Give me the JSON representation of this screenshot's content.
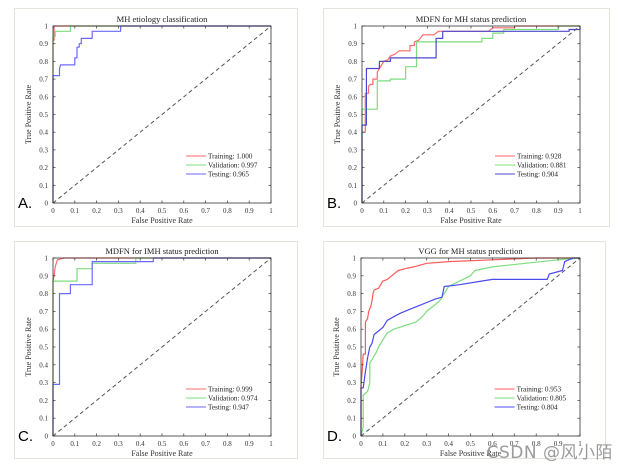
{
  "watermark": "CSDN @风小陌",
  "chart_data": [
    {
      "type": "line",
      "panel_label": "A.",
      "title": "MH etiology classification",
      "xlabel": "False Positive Rate",
      "ylabel": "True Positive Rate",
      "xlim": [
        0,
        1
      ],
      "ylim": [
        0,
        1
      ],
      "xticks": [
        "0",
        "0.1",
        "0.2",
        "0.3",
        "0.4",
        "0.5",
        "0.6",
        "0.7",
        "0.8",
        "0.9",
        "1"
      ],
      "yticks": [
        "0",
        "0.1",
        "0.2",
        "0.3",
        "0.4",
        "0.5",
        "0.6",
        "0.7",
        "0.8",
        "0.9",
        "1"
      ],
      "legend_position": "bottom-right",
      "series": [
        {
          "name": "Training: 1.000",
          "color": "#ff6a6a",
          "points": [
            [
              0,
              0
            ],
            [
              0,
              0.92
            ],
            [
              0.005,
              0.92
            ],
            [
              0.005,
              1
            ],
            [
              0.08,
              1
            ],
            [
              1,
              1
            ]
          ]
        },
        {
          "name": "Validation: 0.997",
          "color": "#7ddc7d",
          "points": [
            [
              0,
              0
            ],
            [
              0,
              0.94
            ],
            [
              0.01,
              0.94
            ],
            [
              0.01,
              0.97
            ],
            [
              0.08,
              0.97
            ],
            [
              0.08,
              1
            ],
            [
              1,
              1
            ]
          ]
        },
        {
          "name": "Testing: 0.965",
          "color": "#6a6aff",
          "points": [
            [
              0,
              0
            ],
            [
              0,
              0.72
            ],
            [
              0.03,
              0.72
            ],
            [
              0.03,
              0.76
            ],
            [
              0.035,
              0.78
            ],
            [
              0.1,
              0.78
            ],
            [
              0.1,
              0.82
            ],
            [
              0.11,
              0.82
            ],
            [
              0.11,
              0.88
            ],
            [
              0.12,
              0.88
            ],
            [
              0.12,
              0.9
            ],
            [
              0.13,
              0.9
            ],
            [
              0.13,
              0.93
            ],
            [
              0.18,
              0.93
            ],
            [
              0.18,
              0.97
            ],
            [
              0.31,
              0.97
            ],
            [
              0.31,
              1
            ],
            [
              1,
              1
            ]
          ]
        },
        {
          "name": "Chance",
          "color": "#555555",
          "dashed": true,
          "legend": false,
          "points": [
            [
              0,
              0
            ],
            [
              1,
              1
            ]
          ]
        }
      ]
    },
    {
      "type": "line",
      "panel_label": "B.",
      "title": "MDFN for MH status prediction",
      "xlabel": "False Positive Rate",
      "ylabel": "True Positive Rate",
      "xlim": [
        0,
        1
      ],
      "ylim": [
        0,
        1
      ],
      "xticks": [
        "0",
        "0.1",
        "0.2",
        "0.3",
        "0.4",
        "0.5",
        "0.6",
        "0.7",
        "0.8",
        "0.9",
        "1"
      ],
      "yticks": [
        "0",
        "0.1",
        "0.2",
        "0.3",
        "0.4",
        "0.5",
        "0.6",
        "0.7",
        "0.8",
        "0.9",
        "1"
      ],
      "legend_position": "bottom-right",
      "series": [
        {
          "name": "Training: 0.928",
          "color": "#ff6a6a",
          "points": [
            [
              0,
              0
            ],
            [
              0,
              0.4
            ],
            [
              0.015,
              0.4
            ],
            [
              0.015,
              0.62
            ],
            [
              0.03,
              0.62
            ],
            [
              0.03,
              0.66
            ],
            [
              0.04,
              0.67
            ],
            [
              0.05,
              0.67
            ],
            [
              0.05,
              0.7
            ],
            [
              0.07,
              0.7
            ],
            [
              0.07,
              0.74
            ],
            [
              0.08,
              0.76
            ],
            [
              0.09,
              0.78
            ],
            [
              0.1,
              0.8
            ],
            [
              0.12,
              0.81
            ],
            [
              0.13,
              0.83
            ],
            [
              0.15,
              0.84
            ],
            [
              0.17,
              0.86
            ],
            [
              0.22,
              0.86
            ],
            [
              0.22,
              0.89
            ],
            [
              0.24,
              0.89
            ],
            [
              0.24,
              0.91
            ],
            [
              0.26,
              0.92
            ],
            [
              0.28,
              0.95
            ],
            [
              0.33,
              0.95
            ],
            [
              0.35,
              0.97
            ],
            [
              0.58,
              0.97
            ],
            [
              0.6,
              0.99
            ],
            [
              0.7,
              0.99
            ],
            [
              0.7,
              1
            ],
            [
              1,
              1
            ]
          ]
        },
        {
          "name": "Validation: 0.881",
          "color": "#7ddc7d",
          "points": [
            [
              0,
              0
            ],
            [
              0,
              0.53
            ],
            [
              0.07,
              0.53
            ],
            [
              0.07,
              0.69
            ],
            [
              0.13,
              0.69
            ],
            [
              0.13,
              0.7
            ],
            [
              0.2,
              0.7
            ],
            [
              0.2,
              0.77
            ],
            [
              0.25,
              0.77
            ],
            [
              0.25,
              0.91
            ],
            [
              0.55,
              0.91
            ],
            [
              0.55,
              0.93
            ],
            [
              0.6,
              0.93
            ],
            [
              0.6,
              0.96
            ],
            [
              0.65,
              0.96
            ],
            [
              0.65,
              0.98
            ],
            [
              0.9,
              0.98
            ],
            [
              0.9,
              1
            ],
            [
              1,
              1
            ]
          ]
        },
        {
          "name": "Testing: 0.904",
          "color": "#4a4acc",
          "points": [
            [
              0,
              0
            ],
            [
              0,
              0.44
            ],
            [
              0.02,
              0.44
            ],
            [
              0.02,
              0.76
            ],
            [
              0.08,
              0.76
            ],
            [
              0.08,
              0.8
            ],
            [
              0.13,
              0.8
            ],
            [
              0.13,
              0.82
            ],
            [
              0.34,
              0.82
            ],
            [
              0.34,
              0.93
            ],
            [
              0.37,
              0.93
            ],
            [
              0.37,
              0.97
            ],
            [
              0.95,
              0.97
            ],
            [
              0.95,
              0.98
            ],
            [
              1,
              0.98
            ],
            [
              1,
              1
            ]
          ]
        },
        {
          "name": "Chance",
          "color": "#555555",
          "dashed": true,
          "legend": false,
          "points": [
            [
              0,
              0
            ],
            [
              1,
              1
            ]
          ]
        }
      ]
    },
    {
      "type": "line",
      "panel_label": "C.",
      "title": "MDFN for IMH status prediction",
      "xlabel": "False Positive Rate",
      "ylabel": "True Positive Rate",
      "xlim": [
        0,
        1
      ],
      "ylim": [
        0,
        1
      ],
      "xticks": [
        "0",
        "0.1",
        "0.2",
        "0.3",
        "0.4",
        "0.5",
        "0.6",
        "0.7",
        "0.8",
        "0.9",
        "1"
      ],
      "yticks": [
        "0",
        "0.1",
        "0.2",
        "0.3",
        "0.4",
        "0.5",
        "0.6",
        "0.7",
        "0.8",
        "0.9",
        "1"
      ],
      "legend_position": "bottom-right",
      "series": [
        {
          "name": "Training: 0.999",
          "color": "#ff6a6a",
          "points": [
            [
              0,
              0
            ],
            [
              0,
              0.87
            ],
            [
              0.005,
              0.9
            ],
            [
              0.01,
              0.95
            ],
            [
              0.015,
              0.97
            ],
            [
              0.02,
              0.99
            ],
            [
              0.05,
              1
            ],
            [
              1,
              1
            ]
          ]
        },
        {
          "name": "Validation: 0.974",
          "color": "#7ddc7d",
          "points": [
            [
              0,
              0
            ],
            [
              0,
              0.87
            ],
            [
              0.11,
              0.87
            ],
            [
              0.11,
              0.94
            ],
            [
              0.18,
              0.94
            ],
            [
              0.18,
              0.97
            ],
            [
              0.38,
              0.97
            ],
            [
              0.38,
              1
            ],
            [
              1,
              1
            ]
          ]
        },
        {
          "name": "Testing: 0.947",
          "color": "#6a6aff",
          "points": [
            [
              0,
              0
            ],
            [
              0,
              0.29
            ],
            [
              0.03,
              0.29
            ],
            [
              0.03,
              0.8
            ],
            [
              0.08,
              0.8
            ],
            [
              0.08,
              0.85
            ],
            [
              0.18,
              0.85
            ],
            [
              0.18,
              0.98
            ],
            [
              0.46,
              0.98
            ],
            [
              0.46,
              1
            ],
            [
              1,
              1
            ]
          ]
        },
        {
          "name": "Chance",
          "color": "#555555",
          "dashed": true,
          "legend": false,
          "points": [
            [
              0,
              0
            ],
            [
              1,
              1
            ]
          ]
        }
      ]
    },
    {
      "type": "line",
      "panel_label": "D.",
      "title": "VGG for MH status prediction",
      "xlabel": "False Positive Rate",
      "ylabel": "True Positive Rate",
      "xlim": [
        0,
        1
      ],
      "ylim": [
        0,
        1
      ],
      "xticks": [
        "0",
        "0.1",
        "0.2",
        "0.3",
        "0.4",
        "0.5",
        "0.6",
        "0.7",
        "0.8",
        "0.9",
        "1"
      ],
      "yticks": [
        "0",
        "0.1",
        "0.2",
        "0.3",
        "0.4",
        "0.5",
        "0.6",
        "0.7",
        "0.8",
        "0.9",
        "1"
      ],
      "legend_position": "bottom-right",
      "series": [
        {
          "name": "Training: 0.953",
          "color": "#ff5a5a",
          "points": [
            [
              0,
              0
            ],
            [
              0,
              0.28
            ],
            [
              0.005,
              0.36
            ],
            [
              0.01,
              0.46
            ],
            [
              0.02,
              0.46
            ],
            [
              0.02,
              0.55
            ],
            [
              0.02,
              0.64
            ],
            [
              0.03,
              0.66
            ],
            [
              0.035,
              0.7
            ],
            [
              0.045,
              0.73
            ],
            [
              0.05,
              0.76
            ],
            [
              0.055,
              0.8
            ],
            [
              0.06,
              0.82
            ],
            [
              0.08,
              0.83
            ],
            [
              0.09,
              0.85
            ],
            [
              0.1,
              0.87
            ],
            [
              0.12,
              0.88
            ],
            [
              0.14,
              0.9
            ],
            [
              0.17,
              0.93
            ],
            [
              0.2,
              0.94
            ],
            [
              0.24,
              0.95
            ],
            [
              0.3,
              0.97
            ],
            [
              0.4,
              0.98
            ],
            [
              0.6,
              0.99
            ],
            [
              0.8,
              1
            ],
            [
              1,
              1
            ]
          ]
        },
        {
          "name": "Validation: 0.805",
          "color": "#7ddc7d",
          "points": [
            [
              0,
              0
            ],
            [
              0.01,
              0.05
            ],
            [
              0.01,
              0.23
            ],
            [
              0.03,
              0.25
            ],
            [
              0.04,
              0.3
            ],
            [
              0.04,
              0.41
            ],
            [
              0.05,
              0.43
            ],
            [
              0.07,
              0.47
            ],
            [
              0.08,
              0.5
            ],
            [
              0.1,
              0.54
            ],
            [
              0.12,
              0.58
            ],
            [
              0.15,
              0.6
            ],
            [
              0.2,
              0.62
            ],
            [
              0.25,
              0.64
            ],
            [
              0.28,
              0.67
            ],
            [
              0.3,
              0.7
            ],
            [
              0.33,
              0.73
            ],
            [
              0.36,
              0.76
            ],
            [
              0.38,
              0.8
            ],
            [
              0.4,
              0.84
            ],
            [
              0.45,
              0.87
            ],
            [
              0.5,
              0.9
            ],
            [
              0.52,
              0.93
            ],
            [
              0.6,
              0.95
            ],
            [
              0.75,
              0.97
            ],
            [
              0.9,
              0.99
            ],
            [
              1,
              1
            ]
          ]
        },
        {
          "name": "Testing: 0.804",
          "color": "#4a4aee",
          "points": [
            [
              0,
              0
            ],
            [
              0,
              0.27
            ],
            [
              0.01,
              0.27
            ],
            [
              0.02,
              0.36
            ],
            [
              0.03,
              0.44
            ],
            [
              0.04,
              0.5
            ],
            [
              0.05,
              0.52
            ],
            [
              0.06,
              0.57
            ],
            [
              0.08,
              0.59
            ],
            [
              0.1,
              0.61
            ],
            [
              0.12,
              0.65
            ],
            [
              0.15,
              0.67
            ],
            [
              0.18,
              0.69
            ],
            [
              0.22,
              0.71
            ],
            [
              0.26,
              0.73
            ],
            [
              0.3,
              0.75
            ],
            [
              0.34,
              0.77
            ],
            [
              0.37,
              0.78
            ],
            [
              0.38,
              0.84
            ],
            [
              0.45,
              0.85
            ],
            [
              0.55,
              0.87
            ],
            [
              0.6,
              0.88
            ],
            [
              0.85,
              0.88
            ],
            [
              0.86,
              0.91
            ],
            [
              0.92,
              0.93
            ],
            [
              0.93,
              0.98
            ],
            [
              0.97,
              1
            ],
            [
              1,
              1
            ]
          ]
        },
        {
          "name": "Chance",
          "color": "#555555",
          "dashed": true,
          "legend": false,
          "points": [
            [
              0,
              0
            ],
            [
              1,
              1
            ]
          ]
        }
      ]
    }
  ]
}
